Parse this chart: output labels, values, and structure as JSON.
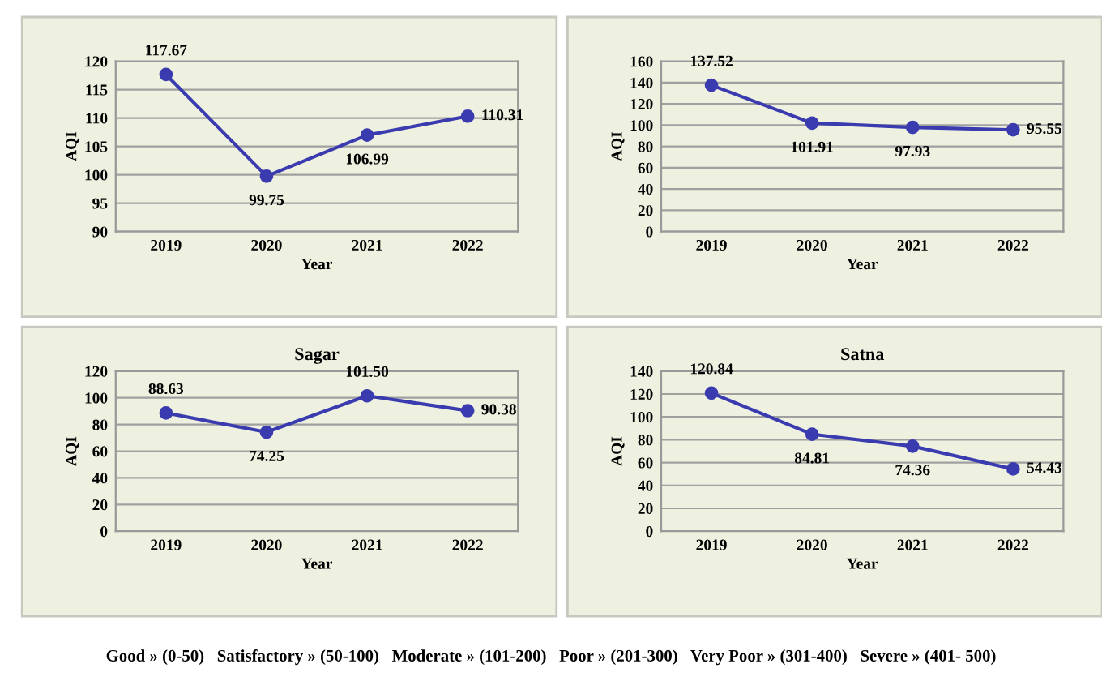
{
  "chart_data": [
    {
      "type": "line",
      "xlabel": "Year",
      "ylabel": "AQI",
      "categories": [
        "2019",
        "2020",
        "2021",
        "2022"
      ],
      "series": [
        {
          "color": "#3b3bb0",
          "values": [
            117.67,
            99.75,
            106.99,
            110.31
          ],
          "value_labels": [
            "117.67",
            "99.75",
            "106.99",
            "110.31"
          ]
        }
      ],
      "ylim": [
        90,
        120
      ],
      "yticks": [
        90,
        95,
        100,
        105,
        110,
        115,
        120
      ],
      "grid": "y",
      "marker": "circle",
      "legend": false
    },
    {
      "type": "line",
      "xlabel": "Year",
      "ylabel": "AQI",
      "categories": [
        "2019",
        "2020",
        "2021",
        "2022"
      ],
      "series": [
        {
          "color": "#3b3bb0",
          "values": [
            137.52,
            101.91,
            97.93,
            95.55
          ],
          "value_labels": [
            "137.52",
            "101.91",
            "97.93",
            "95.55"
          ]
        }
      ],
      "ylim": [
        0,
        160
      ],
      "yticks": [
        0,
        20,
        40,
        60,
        80,
        100,
        120,
        140,
        160
      ],
      "grid": "y",
      "marker": "circle",
      "legend": false
    },
    {
      "type": "line",
      "title": "Sagar",
      "xlabel": "Year",
      "ylabel": "AQI",
      "categories": [
        "2019",
        "2020",
        "2021",
        "2022"
      ],
      "series": [
        {
          "color": "#3b3bb0",
          "values": [
            88.63,
            74.25,
            101.5,
            90.38
          ],
          "value_labels": [
            "88.63",
            "74.25",
            "101.50",
            "90.38"
          ]
        }
      ],
      "ylim": [
        0,
        120
      ],
      "yticks": [
        0,
        20,
        40,
        60,
        80,
        100,
        120
      ],
      "grid": "y",
      "marker": "circle",
      "legend": false
    },
    {
      "type": "line",
      "title": "Satna",
      "xlabel": "Year",
      "ylabel": "AQI",
      "categories": [
        "2019",
        "2020",
        "2021",
        "2022"
      ],
      "series": [
        {
          "color": "#3b3bb0",
          "values": [
            120.84,
            84.81,
            74.36,
            54.43
          ],
          "value_labels": [
            "120.84",
            "84.81",
            "74.36",
            "54.43"
          ]
        }
      ],
      "ylim": [
        0,
        140
      ],
      "yticks": [
        0,
        20,
        40,
        60,
        80,
        100,
        120,
        140
      ],
      "grid": "y",
      "marker": "circle",
      "legend": false,
      "annotations": [
        "Good » (0-50)   Satisfactory » (50-100)   Moderate » (101-200)   Poor » (201-300)   Very Poor » (301-400)   Severe » (401- 500)"
      ]
    }
  ]
}
